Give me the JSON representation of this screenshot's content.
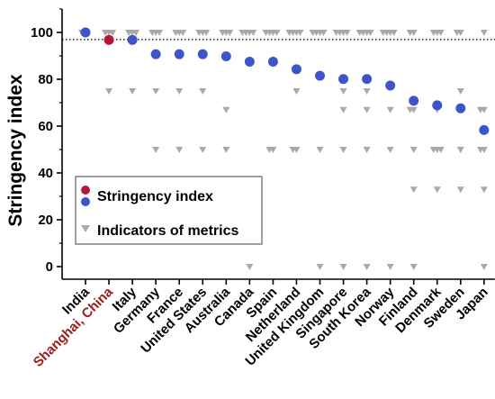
{
  "chart_data": {
    "type": "scatter",
    "ylabel": "Stringency index",
    "ylim": [
      0,
      110
    ],
    "yticks": [
      0,
      20,
      40,
      60,
      80,
      100
    ],
    "reference_line": 97,
    "categories": [
      "India",
      "Shanghai, China",
      "Italy",
      "Germany",
      "France",
      "United States",
      "Australia",
      "Canada",
      "Spain",
      "Netherland",
      "United Kingdom",
      "Singapore",
      "South Korea",
      "Norway",
      "Finland",
      "Denmark",
      "Sweden",
      "Japan"
    ],
    "highlight_category": "Shanghai, China",
    "series": [
      {
        "name": "Stringency index",
        "values": [
          100,
          96.8,
          96.8,
          90.7,
          90.7,
          90.7,
          89.8,
          87.5,
          87.5,
          84.3,
          81.5,
          80.1,
          80.1,
          77.3,
          70.8,
          68.9,
          67.6,
          58.3
        ]
      },
      {
        "name": "Indicators of metrics",
        "values": [
          [
            100,
            100
          ],
          [
            100,
            100,
            100,
            75
          ],
          [
            100,
            100,
            100,
            75
          ],
          [
            100,
            100,
            100,
            75,
            50
          ],
          [
            100,
            100,
            100,
            75,
            50
          ],
          [
            100,
            100,
            100,
            75,
            50
          ],
          [
            100,
            100,
            100,
            67,
            50
          ],
          [
            100,
            100,
            100,
            100,
            0
          ],
          [
            100,
            100,
            100,
            100,
            50,
            50
          ],
          [
            100,
            100,
            100,
            100,
            75,
            50,
            50
          ],
          [
            100,
            100,
            100,
            100,
            50,
            0
          ],
          [
            100,
            100,
            100,
            100,
            75,
            67,
            50,
            0
          ],
          [
            100,
            100,
            100,
            100,
            75,
            67,
            50,
            0
          ],
          [
            100,
            100,
            100,
            100,
            67,
            50,
            0
          ],
          [
            100,
            100,
            67,
            67,
            50,
            33,
            0
          ],
          [
            100,
            100,
            100,
            67,
            50,
            50,
            50,
            33
          ],
          [
            100,
            100,
            75,
            67,
            50,
            33
          ],
          [
            100,
            67,
            67,
            50,
            50,
            33,
            0
          ]
        ]
      }
    ],
    "colors": {
      "stringency": "#3d55c9",
      "highlight": "#b5173b",
      "indicator": "#a9a9a9",
      "highlight_label": "#9b1b1b"
    },
    "legend": {
      "position": "left-middle",
      "entries": [
        "Stringency index",
        "Indicators of metrics"
      ]
    },
    "grid": false
  }
}
